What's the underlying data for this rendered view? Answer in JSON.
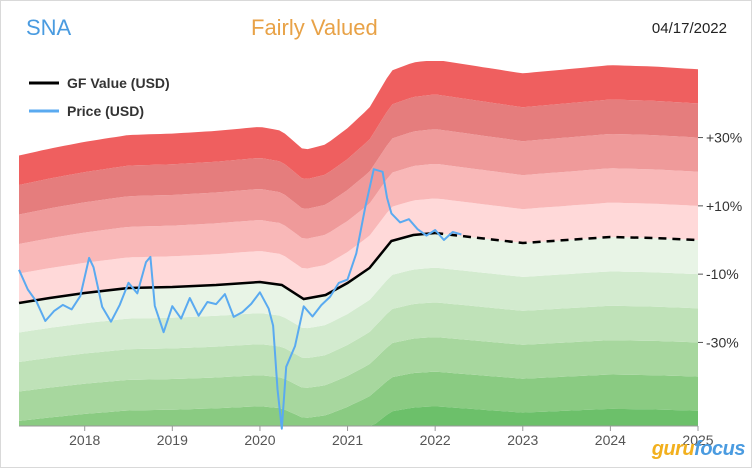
{
  "header": {
    "ticker": "SNA",
    "verdict": "Fairly Valued",
    "date": "04/17/2022"
  },
  "logo": {
    "part1": "guru",
    "part2": "focus"
  },
  "colors": {
    "title": "#4a9be0",
    "verdict": "#e8a247",
    "gf_value": "#000000",
    "price": "#5aaaf0",
    "bands_upper": [
      "#ffd9d9",
      "#f9b8b8",
      "#ef9a9a",
      "#e57d7d",
      "#ef5f5f"
    ],
    "bands_lower": [
      "#e8f4e6",
      "#d3ebcf",
      "#bfe2b8",
      "#a7d79e",
      "#8acb82",
      "#6cc06a"
    ]
  },
  "chart_data": {
    "type": "line",
    "title": "",
    "xlabel": "",
    "ylabel": "",
    "x_ticks": [
      "2018",
      "2019",
      "2020",
      "2021",
      "2022",
      "2023",
      "2024",
      "2025"
    ],
    "x_range": [
      2017.25,
      2025.0
    ],
    "y_range": [
      -60,
      56
    ],
    "band_levels": [
      -50,
      -40,
      -30,
      -20,
      -10,
      0,
      10,
      20,
      30,
      40,
      50
    ],
    "band_labels": [
      {
        "level": 30,
        "text": "+30%"
      },
      {
        "level": 10,
        "text": "+10%"
      },
      {
        "level": -10,
        "text": "-10%"
      },
      {
        "level": -30,
        "text": "-30%"
      }
    ],
    "legend": {
      "position": "top-left",
      "entries": [
        {
          "name": "GF Value (USD)",
          "color": "#000000"
        },
        {
          "name": "Price (USD)",
          "color": "#5aaaf0"
        }
      ]
    },
    "gf_value": {
      "name": "GF Value (USD)",
      "x": [
        2017.25,
        2017.6,
        2018.0,
        2018.5,
        2019.0,
        2019.5,
        2020.0,
        2020.25,
        2020.5,
        2020.75,
        2021.0,
        2021.25,
        2021.5,
        2021.75,
        2022.0
      ],
      "y": [
        160,
        165,
        170,
        175,
        176,
        178,
        181,
        178,
        164,
        168,
        180,
        195,
        222,
        228,
        230
      ]
    },
    "gf_value_projected": {
      "x": [
        2022.0,
        2022.5,
        2023.0,
        2023.5,
        2024.0,
        2024.5,
        2025.0
      ],
      "y": [
        230,
        225,
        220,
        223,
        226,
        225,
        223
      ]
    },
    "price": {
      "name": "Price (USD)",
      "x": [
        2017.25,
        2017.35,
        2017.45,
        2017.55,
        2017.65,
        2017.75,
        2017.85,
        2017.95,
        2018.05,
        2018.1,
        2018.2,
        2018.3,
        2018.4,
        2018.5,
        2018.6,
        2018.7,
        2018.75,
        2018.8,
        2018.9,
        2019.0,
        2019.1,
        2019.2,
        2019.3,
        2019.4,
        2019.5,
        2019.6,
        2019.7,
        2019.8,
        2019.9,
        2020.0,
        2020.1,
        2020.15,
        2020.2,
        2020.25,
        2020.3,
        2020.4,
        2020.5,
        2020.6,
        2020.7,
        2020.8,
        2020.9,
        2021.0,
        2021.1,
        2021.2,
        2021.3,
        2021.4,
        2021.45,
        2021.5,
        2021.6,
        2021.7,
        2021.8,
        2021.9,
        2022.0,
        2022.1,
        2022.2,
        2022.3
      ],
      "y": [
        178,
        168,
        162,
        152,
        158,
        162,
        160,
        168,
        190,
        185,
        163,
        155,
        165,
        178,
        172,
        190,
        193,
        165,
        150,
        165,
        158,
        170,
        160,
        168,
        167,
        173,
        160,
        163,
        168,
        175,
        165,
        155,
        118,
        95,
        130,
        140,
        160,
        155,
        162,
        168,
        178,
        182,
        200,
        230,
        258,
        262,
        248,
        240,
        235,
        238,
        232,
        228,
        232,
        225,
        230,
        228
      ]
    }
  }
}
